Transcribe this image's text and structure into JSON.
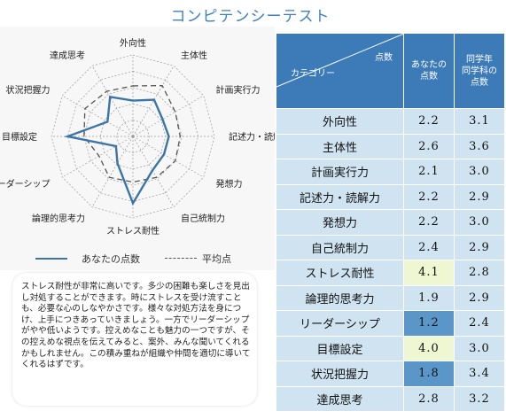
{
  "title": "コンピテンシーテスト",
  "table": {
    "header_score": "点数",
    "header_category": "カテゴリー",
    "header_mine": [
      "あなたの",
      "点数"
    ],
    "header_avg": [
      "同学年",
      "同学科の",
      "点数"
    ]
  },
  "legend": {
    "mine": "あなたの点数",
    "avg": "平均点"
  },
  "comment": "ストレス耐性が非常に高いです。多少の困難も楽しさを見出し対処することができます。時にストレスを受け流すことも、必要な心のしなやかさです。様々な対処方法を身につけ、上手につきあっていきましょう。一方でリーダーシップがやや低いようです。控えめなことも魅力の一つですが、その控えめな視点を伝えてみると、案外、みんな聞いてくれるかもしれません。この積み重ねが組織や仲間を適切に導いてくれるはずです。",
  "colors": {
    "header_bg": "#3d7ab8",
    "cell_bg": "#cfe3f1",
    "highlight_high": "#eef6d2",
    "highlight_low": "#5b96c9",
    "mine_line": "#3b74a8",
    "title": "#3d7fbf"
  },
  "chart_data": {
    "type": "radar",
    "title": "",
    "categories": [
      "外向性",
      "主体性",
      "計画実行力",
      "記述力・読解力",
      "発想力",
      "自己統制力",
      "ストレス耐性",
      "論理的思考力",
      "リーダーシップ",
      "目標設定",
      "状況把握力",
      "達成思考"
    ],
    "series": [
      {
        "name": "あなたの点数",
        "values": [
          2.2,
          2.6,
          2.1,
          2.2,
          2.2,
          2.4,
          4.1,
          1.9,
          1.2,
          4.0,
          1.8,
          2.8
        ]
      },
      {
        "name": "平均点",
        "values": [
          3.1,
          3.6,
          3.0,
          2.9,
          3.0,
          2.9,
          2.8,
          2.9,
          2.4,
          3.0,
          3.4,
          3.2
        ]
      }
    ],
    "rlim": [
      0,
      5
    ],
    "grid_rings": 5,
    "legend_position": "bottom"
  },
  "rows": [
    {
      "category": "外向性",
      "mine": "2.2",
      "avg": "3.1",
      "highlight": ""
    },
    {
      "category": "主体性",
      "mine": "2.6",
      "avg": "3.6",
      "highlight": ""
    },
    {
      "category": "計画実行力",
      "mine": "2.1",
      "avg": "3.0",
      "highlight": ""
    },
    {
      "category": "記述力・読解力",
      "mine": "2.2",
      "avg": "2.9",
      "highlight": ""
    },
    {
      "category": "発想力",
      "mine": "2.2",
      "avg": "3.0",
      "highlight": ""
    },
    {
      "category": "自己統制力",
      "mine": "2.4",
      "avg": "2.9",
      "highlight": ""
    },
    {
      "category": "ストレス耐性",
      "mine": "4.1",
      "avg": "2.8",
      "highlight": "high"
    },
    {
      "category": "論理的思考力",
      "mine": "1.9",
      "avg": "2.9",
      "highlight": ""
    },
    {
      "category": "リーダーシップ",
      "mine": "1.2",
      "avg": "2.4",
      "highlight": "low"
    },
    {
      "category": "目標設定",
      "mine": "4.0",
      "avg": "3.0",
      "highlight": "high"
    },
    {
      "category": "状況把握力",
      "mine": "1.8",
      "avg": "3.4",
      "highlight": "low"
    },
    {
      "category": "達成思考",
      "mine": "2.8",
      "avg": "3.2",
      "highlight": ""
    }
  ]
}
